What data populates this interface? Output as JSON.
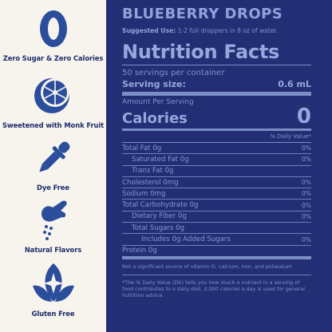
{
  "features": [
    {
      "icon": "zero-icon",
      "label": "Zero Sugar & Zero Calories"
    },
    {
      "icon": "monk-fruit-icon",
      "label": "Sweetened with Monk Fruit"
    },
    {
      "icon": "dropper-icon",
      "label": "Dye Free"
    },
    {
      "icon": "hand-sprinkle-icon",
      "label": "Natural Flavors"
    },
    {
      "icon": "leaf-sparkle-icon",
      "label": "Gluten Free"
    }
  ],
  "product": {
    "title": "BLUEBERRY DROPS",
    "suggested_label": "Suggested Use:",
    "suggested_text": " 1-2 full droppers in 8 oz of water."
  },
  "nutrition": {
    "title": "Nutrition Facts",
    "servings": "50 servings per container",
    "serving_size_label": "Serving size:",
    "serving_size_value": "0.6 mL",
    "amount_per_serving": "Amount Per Serving",
    "calories_label": "Calories",
    "calories_value": "0",
    "dv_header": "% Daily Value*",
    "rows": [
      {
        "name": "Total Fat 0g",
        "pct": "0%"
      },
      {
        "name": "Saturated Fat 0g",
        "pct": "0%"
      },
      {
        "name_italic": "Trans",
        "name_rest": " Fat 0g",
        "pct": ""
      },
      {
        "name": "Cholesterol 0mg",
        "pct": "0%"
      },
      {
        "name": "Sodium 0mg",
        "pct": "0%"
      },
      {
        "name": "Total Carbohydrate 0g",
        "pct": "0%"
      },
      {
        "name": "Dietary Fiber 0g",
        "pct": "0%"
      },
      {
        "name": "Total Sugars 0g",
        "pct": ""
      },
      {
        "name": "Includes 0g Added Sugars",
        "pct": "0%"
      },
      {
        "name": "Protein 0g",
        "pct": ""
      }
    ],
    "footnote1": "Not a significant source of vitamin D, calcium, iron, and potassium",
    "footnote2": "*The % Daily Value (DV) tells you how much a nutrient in a serving of food contributes to a daily diet. 2,000 calories a day is used for general nutrition advice."
  },
  "colors": {
    "panel_bg": "#232e74",
    "left_bg": "#f7f4ee",
    "icon_blue": "#2b4e9c",
    "label_navy": "#1e2d6b"
  }
}
